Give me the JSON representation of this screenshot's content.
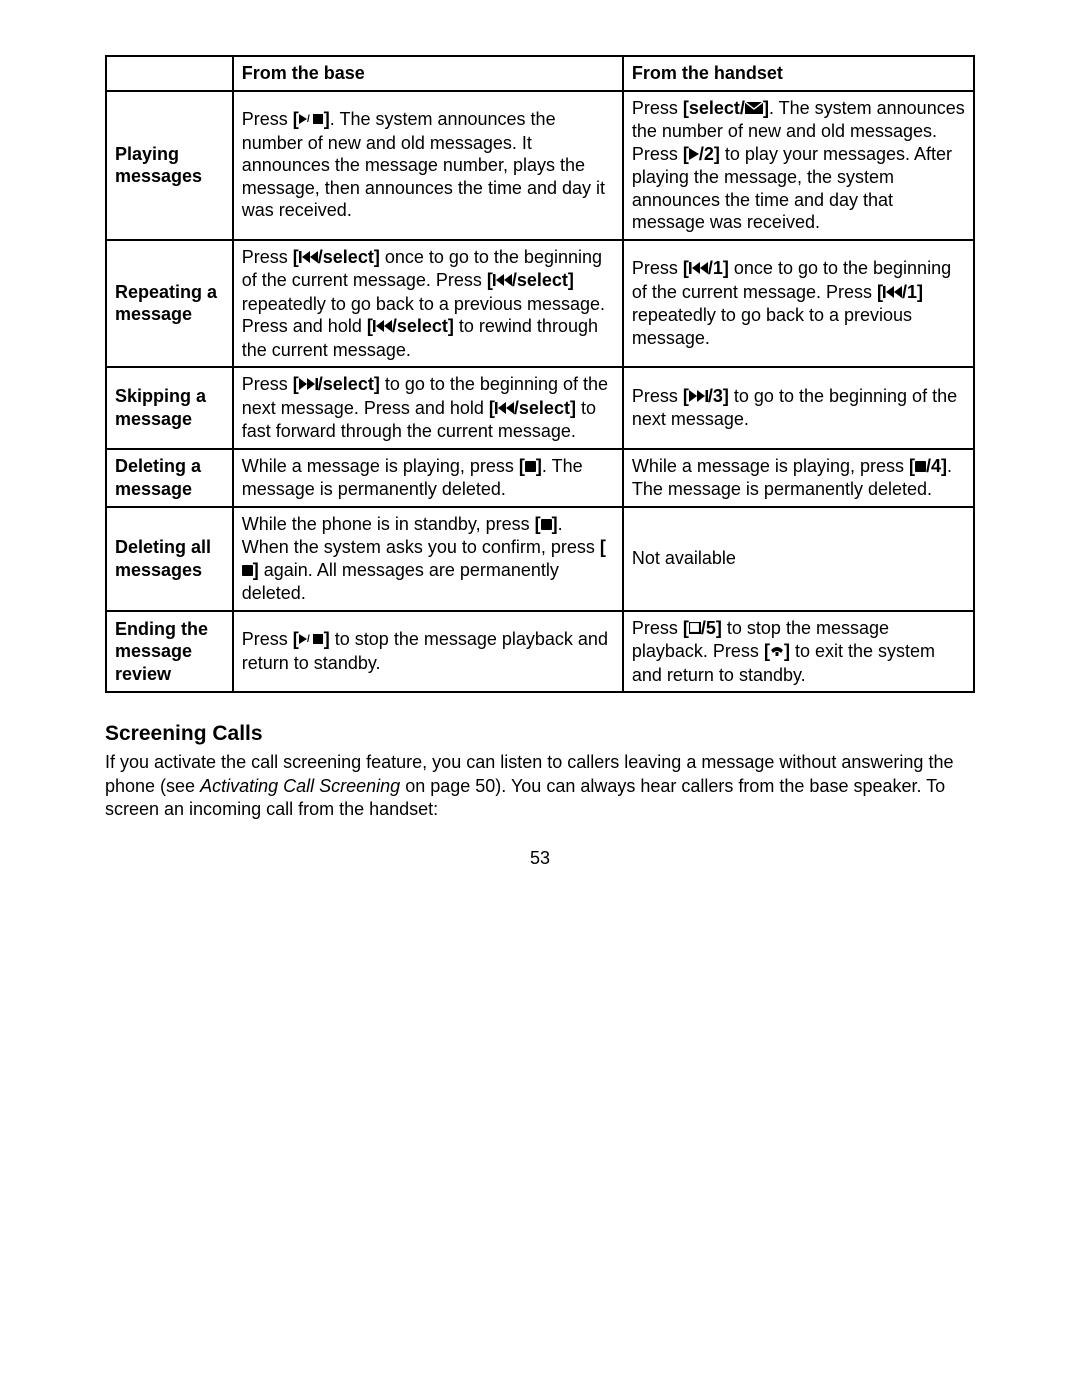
{
  "table": {
    "header": {
      "label": "",
      "base": "From the base",
      "handset": "From the handset"
    },
    "rows": [
      {
        "label": "Playing messages",
        "base_parts": [
          {
            "t": "text",
            "v": "Press "
          },
          {
            "t": "b",
            "v": "["
          },
          {
            "t": "icon",
            "v": "play-stop"
          },
          {
            "t": "b",
            "v": "]"
          },
          {
            "t": "text",
            "v": ". The system announces the number of new and old messages. It announces the message number, plays the message, then announces the time and day it was received."
          }
        ],
        "handset_parts": [
          {
            "t": "text",
            "v": "Press "
          },
          {
            "t": "b",
            "v": "[select/"
          },
          {
            "t": "icon",
            "v": "envelope"
          },
          {
            "t": "b",
            "v": "]"
          },
          {
            "t": "text",
            "v": ". The system announces the number of new and old messages. Press "
          },
          {
            "t": "b",
            "v": "["
          },
          {
            "t": "icon",
            "v": "play"
          },
          {
            "t": "b",
            "v": "/2]"
          },
          {
            "t": "text",
            "v": " to play your messages. After playing the message, the system announces the time and day that message was received."
          }
        ]
      },
      {
        "label": "Repeating a message",
        "base_parts": [
          {
            "t": "text",
            "v": "Press "
          },
          {
            "t": "b",
            "v": "["
          },
          {
            "t": "icon",
            "v": "rew"
          },
          {
            "t": "b",
            "v": "/select]"
          },
          {
            "t": "text",
            "v": " once to go to the beginning of the current message. Press "
          },
          {
            "t": "b",
            "v": "["
          },
          {
            "t": "icon",
            "v": "rew"
          },
          {
            "t": "b",
            "v": "/select]"
          },
          {
            "t": "text",
            "v": " repeatedly to go back to a previous message. Press and hold "
          },
          {
            "t": "b",
            "v": "["
          },
          {
            "t": "icon",
            "v": "rew"
          },
          {
            "t": "b",
            "v": "/select]"
          },
          {
            "t": "text",
            "v": " to rewind through the current message."
          }
        ],
        "handset_parts": [
          {
            "t": "text",
            "v": "Press "
          },
          {
            "t": "b",
            "v": "["
          },
          {
            "t": "icon",
            "v": "rew"
          },
          {
            "t": "b",
            "v": "/1]"
          },
          {
            "t": "text",
            "v": " once to go to the beginning of the current message. Press "
          },
          {
            "t": "b",
            "v": "["
          },
          {
            "t": "icon",
            "v": "rew"
          },
          {
            "t": "b",
            "v": "/1]"
          },
          {
            "t": "text",
            "v": " repeatedly to go back to a previous message."
          }
        ]
      },
      {
        "label": "Skipping a message",
        "base_parts": [
          {
            "t": "text",
            "v": "Press "
          },
          {
            "t": "b",
            "v": "["
          },
          {
            "t": "icon",
            "v": "fwd"
          },
          {
            "t": "b",
            "v": "/select]"
          },
          {
            "t": "text",
            "v": " to go to the beginning of the next message. Press and hold "
          },
          {
            "t": "b",
            "v": "["
          },
          {
            "t": "icon",
            "v": "rew"
          },
          {
            "t": "b",
            "v": "/select]"
          },
          {
            "t": "text",
            "v": " to fast forward through the current message."
          }
        ],
        "handset_parts": [
          {
            "t": "text",
            "v": "Press "
          },
          {
            "t": "b",
            "v": "["
          },
          {
            "t": "icon",
            "v": "fwd"
          },
          {
            "t": "b",
            "v": "/3]"
          },
          {
            "t": "text",
            "v": " to go to the beginning of the next message."
          }
        ]
      },
      {
        "label": "Deleting a message",
        "base_parts": [
          {
            "t": "text",
            "v": "While a message is playing, press "
          },
          {
            "t": "b",
            "v": "["
          },
          {
            "t": "icon",
            "v": "square"
          },
          {
            "t": "b",
            "v": "]"
          },
          {
            "t": "text",
            "v": ". The message is permanently deleted."
          }
        ],
        "handset_parts": [
          {
            "t": "text",
            "v": "While a message is playing, press "
          },
          {
            "t": "b",
            "v": "["
          },
          {
            "t": "icon",
            "v": "square"
          },
          {
            "t": "b",
            "v": "/4]"
          },
          {
            "t": "text",
            "v": ". The message is permanently deleted."
          }
        ]
      },
      {
        "label": "Deleting all messages",
        "base_parts": [
          {
            "t": "text",
            "v": "While the phone is in standby, press "
          },
          {
            "t": "b",
            "v": "["
          },
          {
            "t": "icon",
            "v": "square"
          },
          {
            "t": "b",
            "v": "]"
          },
          {
            "t": "text",
            "v": ". When the system asks you to confirm, press "
          },
          {
            "t": "b",
            "v": "["
          },
          {
            "t": "icon",
            "v": "square"
          },
          {
            "t": "b",
            "v": "]"
          },
          {
            "t": "text",
            "v": " again. All messages are permanently deleted."
          }
        ],
        "handset_parts": [
          {
            "t": "text",
            "v": "Not available"
          }
        ]
      },
      {
        "label": "Ending the message review",
        "base_parts": [
          {
            "t": "text",
            "v": "Press "
          },
          {
            "t": "b",
            "v": "["
          },
          {
            "t": "icon",
            "v": "play-stop"
          },
          {
            "t": "b",
            "v": "]"
          },
          {
            "t": "text",
            "v": " to stop the message playback and return to standby."
          }
        ],
        "handset_parts": [
          {
            "t": "text",
            "v": "Press "
          },
          {
            "t": "b",
            "v": "["
          },
          {
            "t": "icon",
            "v": "stop-outline"
          },
          {
            "t": "b",
            "v": "/5]"
          },
          {
            "t": "text",
            "v": " to stop the message playback. Press "
          },
          {
            "t": "b",
            "v": "["
          },
          {
            "t": "icon",
            "v": "phone-down"
          },
          {
            "t": "b",
            "v": "]"
          },
          {
            "t": "text",
            "v": " to exit the system and return to standby."
          }
        ]
      }
    ]
  },
  "section": {
    "heading": "Screening Calls",
    "body_pre": "If you activate the call screening feature, you can listen to callers leaving a message without answering the phone (see ",
    "body_italic": "Activating Call Screening",
    "body_post": " on page 50). You can always hear callers from the base speaker. To screen an incoming call from the handset:"
  },
  "page_number": "53",
  "colors": {
    "text": "#000000",
    "bg": "#ffffff",
    "border": "#000000"
  }
}
